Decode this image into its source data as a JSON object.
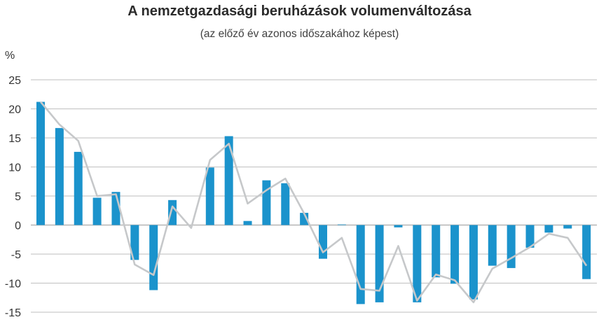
{
  "chart_data": {
    "type": "bar",
    "title": "A nemzetgazdasági beruházások volumenváltozása",
    "subtitle": "(az előző év azonos időszakához képest)",
    "ylabel": "%",
    "xlabel": "",
    "ylim": [
      -15,
      25
    ],
    "yticks": [
      "25",
      "20",
      "15",
      "10",
      "5",
      "0",
      "-5",
      "-10",
      "-15"
    ],
    "grid": true,
    "colors": {
      "bar": "#1b93cc",
      "line": "#c6c8ca",
      "grid": "#c9c9c9"
    },
    "bar_values": [
      21.2,
      16.7,
      12.6,
      4.7,
      5.7,
      -6.0,
      -11.2,
      4.3,
      0.0,
      9.9,
      15.3,
      0.7,
      7.7,
      7.2,
      2.1,
      -5.8,
      0.1,
      -13.6,
      -13.3,
      -0.4,
      -13.3,
      -9.0,
      -10.1,
      -12.8,
      -7.0,
      -7.4,
      -3.9,
      -1.3,
      -0.6,
      -9.3
    ],
    "line_values": [
      21.2,
      17.3,
      14.5,
      5.0,
      5.3,
      -6.8,
      -8.6,
      3.2,
      -0.5,
      11.2,
      14.0,
      3.7,
      6.0,
      8.0,
      2.0,
      -4.7,
      -2.2,
      -11.0,
      -11.3,
      -3.6,
      -13.0,
      -8.5,
      -9.5,
      -13.3,
      -7.5,
      -5.7,
      -3.8,
      -1.5,
      -2.2,
      -7.0
    ]
  }
}
